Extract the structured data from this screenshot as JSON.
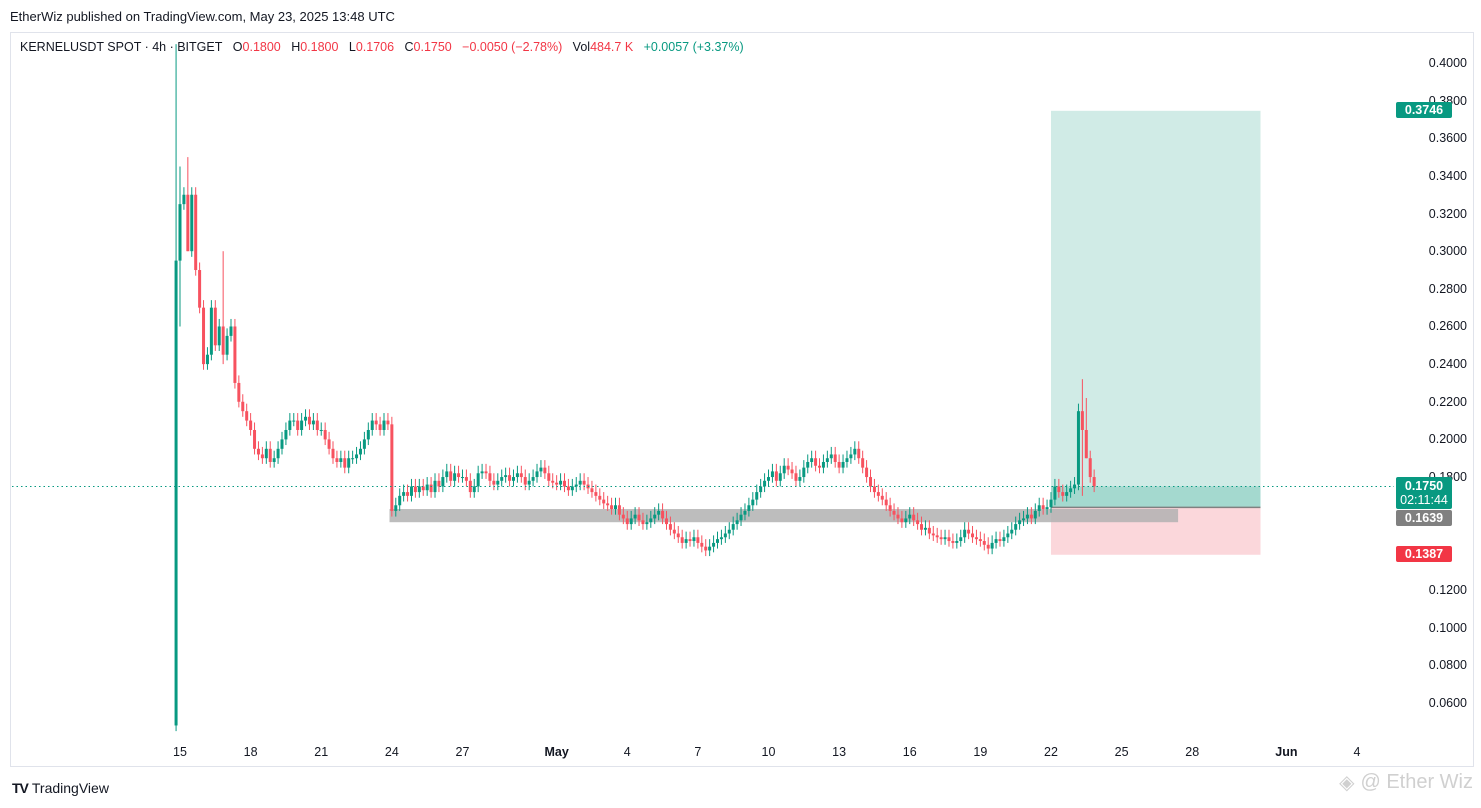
{
  "header": {
    "publisher_line": "EtherWiz published on TradingView.com, May 23, 2025 13:48 UTC",
    "symbol": "KERNELUSDT SPOT · 4h · BITGET",
    "o_label": "O",
    "o_value": "0.1800",
    "h_label": "H",
    "h_value": "0.1800",
    "l_label": "L",
    "l_value": "0.1706",
    "c_label": "C",
    "c_value": "0.1750",
    "change": "−0.0050 (−2.78%)",
    "vol_label": "Vol",
    "vol_value": "484.7 K",
    "vol_change": "+0.0057 (+3.37%)"
  },
  "colors": {
    "up": "#089981",
    "down": "#f23645",
    "candle_down": "#f7525f",
    "target_zone": "#d0ebe6",
    "stop_zone": "#fbd7db",
    "support_zone": "#b2b2b2"
  },
  "price_tags": {
    "target": "0.3746",
    "last": "0.1750",
    "countdown": "02:11:44",
    "entry": "0.1639",
    "stop": "0.1387"
  },
  "footer": {
    "brand": "TradingView",
    "watermark": "@ Ether Wiz"
  },
  "chart_data": {
    "type": "candlestick",
    "title": "KERNELUSDT SPOT 4h BITGET",
    "ylim": [
      0.045,
      0.41
    ],
    "y_ticks": [
      "0.4000",
      "0.3800",
      "0.3600",
      "0.3400",
      "0.3200",
      "0.3000",
      "0.2800",
      "0.2600",
      "0.2400",
      "0.2200",
      "0.2000",
      "0.1800",
      "0.1200",
      "0.1000",
      "0.0800",
      "0.0600"
    ],
    "x_ticks": [
      {
        "label": "15",
        "day": 15
      },
      {
        "label": "18",
        "day": 18
      },
      {
        "label": "21",
        "day": 21
      },
      {
        "label": "24",
        "day": 24
      },
      {
        "label": "27",
        "day": 27
      },
      {
        "label": "May",
        "day": 31
      },
      {
        "label": "4",
        "day": 34
      },
      {
        "label": "7",
        "day": 37
      },
      {
        "label": "10",
        "day": 40
      },
      {
        "label": "13",
        "day": 43
      },
      {
        "label": "16",
        "day": 46
      },
      {
        "label": "19",
        "day": 49
      },
      {
        "label": "22",
        "day": 52
      },
      {
        "label": "25",
        "day": 55
      },
      {
        "label": "28",
        "day": 58
      },
      {
        "label": "Jun",
        "day": 62
      },
      {
        "label": "4",
        "day": 65
      }
    ],
    "start_day": 14.833,
    "candle_days": 0.16667,
    "first_open": 0.048,
    "closes": [
      0.295,
      0.325,
      0.33,
      0.3,
      0.33,
      0.29,
      0.27,
      0.24,
      0.245,
      0.27,
      0.25,
      0.26,
      0.245,
      0.255,
      0.26,
      0.23,
      0.22,
      0.215,
      0.21,
      0.205,
      0.195,
      0.192,
      0.19,
      0.195,
      0.188,
      0.19,
      0.195,
      0.2,
      0.205,
      0.21,
      0.21,
      0.205,
      0.21,
      0.212,
      0.208,
      0.21,
      0.205,
      0.205,
      0.2,
      0.195,
      0.19,
      0.188,
      0.19,
      0.185,
      0.19,
      0.19,
      0.192,
      0.195,
      0.2,
      0.205,
      0.21,
      0.208,
      0.205,
      0.21,
      0.208,
      0.162,
      0.165,
      0.17,
      0.172,
      0.17,
      0.175,
      0.172,
      0.175,
      0.173,
      0.176,
      0.172,
      0.178,
      0.175,
      0.18,
      0.183,
      0.178,
      0.182,
      0.18,
      0.18,
      0.178,
      0.172,
      0.175,
      0.182,
      0.183,
      0.182,
      0.178,
      0.176,
      0.178,
      0.18,
      0.181,
      0.178,
      0.18,
      0.182,
      0.18,
      0.176,
      0.178,
      0.18,
      0.183,
      0.185,
      0.182,
      0.178,
      0.177,
      0.176,
      0.178,
      0.175,
      0.173,
      0.175,
      0.176,
      0.178,
      0.176,
      0.174,
      0.172,
      0.17,
      0.168,
      0.166,
      0.165,
      0.163,
      0.165,
      0.16,
      0.158,
      0.155,
      0.158,
      0.16,
      0.157,
      0.155,
      0.156,
      0.158,
      0.16,
      0.162,
      0.158,
      0.155,
      0.152,
      0.15,
      0.148,
      0.145,
      0.147,
      0.146,
      0.148,
      0.145,
      0.143,
      0.141,
      0.143,
      0.145,
      0.147,
      0.148,
      0.15,
      0.152,
      0.155,
      0.157,
      0.16,
      0.162,
      0.165,
      0.168,
      0.172,
      0.175,
      0.178,
      0.18,
      0.183,
      0.178,
      0.182,
      0.186,
      0.184,
      0.182,
      0.178,
      0.18,
      0.185,
      0.188,
      0.19,
      0.186,
      0.185,
      0.188,
      0.19,
      0.192,
      0.188,
      0.185,
      0.188,
      0.19,
      0.192,
      0.195,
      0.19,
      0.185,
      0.18,
      0.175,
      0.172,
      0.17,
      0.168,
      0.165,
      0.162,
      0.16,
      0.158,
      0.156,
      0.158,
      0.16,
      0.157,
      0.155,
      0.152,
      0.153,
      0.15,
      0.149,
      0.148,
      0.147,
      0.148,
      0.146,
      0.145,
      0.146,
      0.148,
      0.152,
      0.15,
      0.148,
      0.147,
      0.146,
      0.144,
      0.142,
      0.145,
      0.147,
      0.146,
      0.148,
      0.15,
      0.152,
      0.155,
      0.157,
      0.158,
      0.16,
      0.158,
      0.162,
      0.165,
      0.163,
      0.164,
      0.168,
      0.175,
      0.172,
      0.17,
      0.172,
      0.174,
      0.176,
      0.215,
      0.205,
      0.19,
      0.18,
      0.175
    ],
    "wick_overrides": {
      "0": [
        0.41,
        0.045
      ],
      "1": [
        0.345,
        0.26
      ],
      "3": [
        0.35,
        0.3
      ],
      "12": [
        0.3,
        0.24
      ],
      "231": [
        0.232,
        0.17
      ],
      "232": [
        0.222,
        0.19
      ]
    },
    "last_price": 0.175,
    "support_zone": {
      "top": 0.163,
      "bottom": 0.156,
      "from_day": 23.9,
      "to_day": 57.4
    },
    "long_position": {
      "entry": 0.1639,
      "target": 0.3746,
      "stop": 0.1387,
      "from_day": 52,
      "to_day": 60.9
    }
  }
}
